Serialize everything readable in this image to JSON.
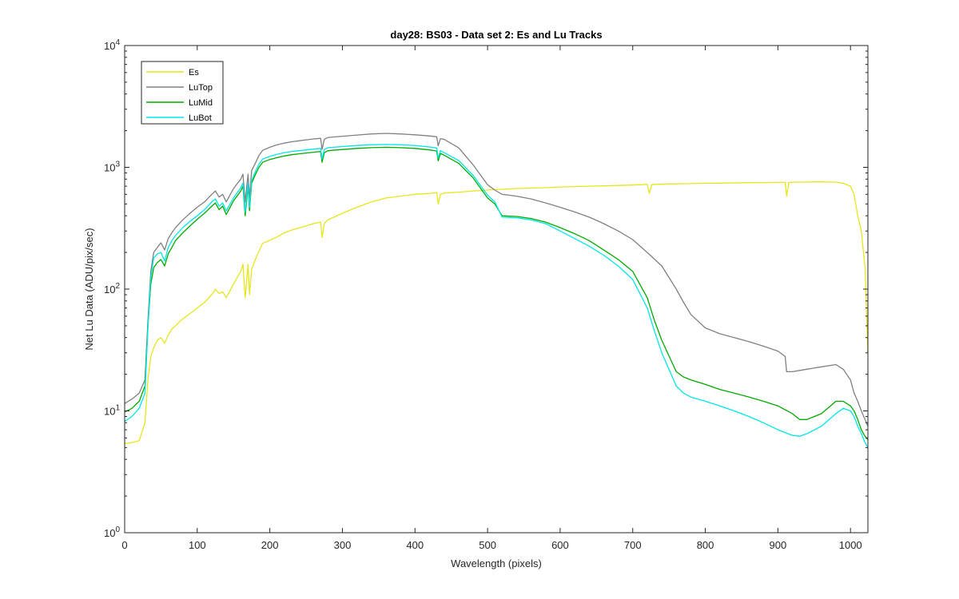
{
  "chart_data": {
    "type": "line",
    "title": "day28: BS03 - Data set 2: Es and Lu Tracks",
    "xlabel": "Wavelength (pixels)",
    "ylabel": "Net Lu Data (ADU/pix/sec)",
    "xlim": [
      0,
      1024
    ],
    "ylim": [
      1,
      10000
    ],
    "yscale": "log",
    "grid": false,
    "legend_position": "top-left",
    "x_ticks": [
      0,
      100,
      200,
      300,
      400,
      500,
      600,
      700,
      800,
      900,
      1000
    ],
    "x_tick_labels": [
      "0",
      "100",
      "200",
      "300",
      "400",
      "500",
      "600",
      "700",
      "800",
      "900",
      "1000"
    ],
    "y_ticks": [
      1,
      10,
      100,
      1000,
      10000
    ],
    "y_tick_labels": [
      {
        "base": "10",
        "exp": "0"
      },
      {
        "base": "10",
        "exp": "1"
      },
      {
        "base": "10",
        "exp": "2"
      },
      {
        "base": "10",
        "exp": "3"
      },
      {
        "base": "10",
        "exp": "4"
      }
    ],
    "series": [
      {
        "name": "Es",
        "color": "#e6e61a",
        "x": [
          0,
          10,
          20,
          28,
          32,
          36,
          40,
          45,
          50,
          55,
          60,
          65,
          70,
          80,
          90,
          100,
          110,
          120,
          125,
          130,
          135,
          140,
          150,
          160,
          163,
          166,
          170,
          172,
          175,
          180,
          185,
          190,
          200,
          210,
          220,
          230,
          240,
          250,
          260,
          270,
          272,
          275,
          280,
          300,
          320,
          340,
          360,
          380,
          400,
          420,
          430,
          432,
          435,
          440,
          460,
          480,
          500,
          520,
          540,
          560,
          580,
          600,
          620,
          640,
          660,
          680,
          700,
          710,
          720,
          723,
          726,
          730,
          750,
          780,
          800,
          820,
          840,
          860,
          880,
          900,
          910,
          912,
          915,
          920,
          940,
          960,
          980,
          990,
          1000,
          1005,
          1010,
          1015,
          1020,
          1024
        ],
        "y": [
          5.4,
          5.5,
          5.7,
          8,
          18,
          28,
          33,
          38,
          40,
          36,
          42,
          47,
          50,
          57,
          63,
          70,
          78,
          90,
          100,
          92,
          95,
          85,
          110,
          140,
          160,
          85,
          160,
          90,
          145,
          175,
          205,
          238,
          252,
          268,
          290,
          305,
          318,
          330,
          345,
          355,
          265,
          345,
          370,
          420,
          470,
          520,
          560,
          580,
          600,
          610,
          620,
          500,
          600,
          615,
          625,
          640,
          650,
          660,
          670,
          675,
          680,
          690,
          695,
          700,
          705,
          710,
          715,
          720,
          725,
          610,
          720,
          725,
          730,
          735,
          740,
          742,
          745,
          748,
          750,
          752,
          755,
          580,
          750,
          755,
          758,
          760,
          755,
          740,
          700,
          600,
          400,
          300,
          150,
          30
        ]
      },
      {
        "name": "LuTop",
        "color": "#808080",
        "x": [
          0,
          10,
          20,
          28,
          32,
          36,
          40,
          45,
          50,
          55,
          60,
          65,
          70,
          80,
          90,
          100,
          110,
          120,
          125,
          130,
          135,
          140,
          150,
          160,
          163,
          166,
          170,
          172,
          175,
          180,
          185,
          190,
          200,
          210,
          220,
          230,
          240,
          250,
          260,
          270,
          272,
          275,
          280,
          300,
          320,
          340,
          360,
          380,
          400,
          420,
          430,
          432,
          435,
          440,
          460,
          480,
          500,
          510,
          520,
          540,
          560,
          580,
          600,
          620,
          640,
          660,
          680,
          700,
          720,
          740,
          760,
          770,
          780,
          800,
          820,
          840,
          860,
          880,
          900,
          910,
          912,
          915,
          920,
          940,
          960,
          980,
          990,
          1000,
          1005,
          1010,
          1015,
          1020,
          1024
        ],
        "y": [
          11.5,
          12.5,
          14,
          18,
          55,
          140,
          200,
          220,
          240,
          210,
          260,
          290,
          320,
          370,
          420,
          470,
          520,
          600,
          640,
          570,
          600,
          520,
          670,
          800,
          880,
          520,
          880,
          560,
          940,
          1080,
          1250,
          1380,
          1460,
          1530,
          1580,
          1620,
          1650,
          1680,
          1710,
          1730,
          1400,
          1700,
          1760,
          1800,
          1840,
          1880,
          1900,
          1880,
          1850,
          1810,
          1780,
          1500,
          1720,
          1700,
          1450,
          1050,
          720,
          650,
          600,
          580,
          550,
          510,
          470,
          430,
          390,
          345,
          300,
          255,
          200,
          155,
          100,
          78,
          62,
          48,
          43,
          40,
          37,
          34,
          31,
          28,
          21,
          21,
          21,
          22,
          23,
          24,
          22,
          18,
          14,
          12,
          10,
          8.5,
          7.5
        ]
      },
      {
        "name": "LuMid",
        "color": "#00aa00",
        "x": [
          0,
          10,
          20,
          28,
          32,
          36,
          40,
          45,
          50,
          55,
          60,
          65,
          70,
          80,
          90,
          100,
          110,
          120,
          125,
          130,
          135,
          140,
          150,
          160,
          163,
          166,
          170,
          172,
          175,
          180,
          185,
          190,
          200,
          210,
          220,
          230,
          240,
          250,
          260,
          270,
          272,
          275,
          280,
          300,
          320,
          340,
          360,
          380,
          400,
          420,
          430,
          432,
          435,
          440,
          460,
          480,
          500,
          510,
          520,
          540,
          560,
          580,
          600,
          620,
          640,
          660,
          680,
          700,
          720,
          730,
          740,
          760,
          770,
          780,
          800,
          820,
          840,
          860,
          880,
          900,
          920,
          930,
          940,
          960,
          980,
          990,
          1000,
          1005,
          1010,
          1015,
          1020,
          1024
        ],
        "y": [
          9.8,
          10.5,
          12,
          16,
          50,
          110,
          150,
          165,
          175,
          155,
          195,
          220,
          250,
          290,
          330,
          375,
          420,
          480,
          510,
          450,
          480,
          410,
          530,
          640,
          700,
          400,
          700,
          440,
          740,
          870,
          1000,
          1100,
          1160,
          1200,
          1240,
          1270,
          1290,
          1310,
          1330,
          1350,
          1100,
          1320,
          1370,
          1400,
          1430,
          1450,
          1460,
          1450,
          1430,
          1390,
          1360,
          1130,
          1300,
          1260,
          1080,
          820,
          560,
          500,
          400,
          395,
          380,
          355,
          320,
          285,
          250,
          210,
          175,
          140,
          85,
          55,
          38,
          21,
          19,
          18,
          16.5,
          15,
          14,
          13,
          12,
          11,
          9.5,
          8.5,
          8.5,
          9.5,
          12,
          12,
          11,
          10,
          8.5,
          7,
          6.2,
          5.8
        ]
      },
      {
        "name": "LuBot",
        "color": "#00e6e6",
        "x": [
          0,
          10,
          20,
          28,
          32,
          36,
          40,
          45,
          50,
          55,
          60,
          65,
          70,
          80,
          90,
          100,
          110,
          120,
          125,
          130,
          135,
          140,
          150,
          160,
          163,
          166,
          170,
          172,
          175,
          180,
          185,
          190,
          200,
          210,
          220,
          230,
          240,
          250,
          260,
          270,
          272,
          275,
          280,
          300,
          320,
          340,
          360,
          380,
          400,
          420,
          430,
          432,
          435,
          440,
          460,
          480,
          500,
          510,
          520,
          540,
          560,
          580,
          600,
          620,
          640,
          660,
          680,
          700,
          720,
          730,
          740,
          760,
          770,
          780,
          800,
          820,
          840,
          860,
          880,
          900,
          920,
          930,
          940,
          960,
          980,
          990,
          1000,
          1005,
          1010,
          1015,
          1020,
          1024
        ],
        "y": [
          8.2,
          9,
          10.5,
          14,
          48,
          125,
          180,
          195,
          200,
          170,
          220,
          250,
          275,
          320,
          360,
          400,
          450,
          520,
          550,
          480,
          510,
          440,
          560,
          680,
          740,
          430,
          740,
          470,
          780,
          920,
          1060,
          1170,
          1230,
          1280,
          1320,
          1350,
          1370,
          1390,
          1410,
          1430,
          1170,
          1400,
          1450,
          1480,
          1510,
          1530,
          1540,
          1530,
          1510,
          1470,
          1440,
          1190,
          1370,
          1320,
          1140,
          860,
          590,
          520,
          390,
          385,
          370,
          345,
          300,
          260,
          225,
          190,
          155,
          120,
          70,
          45,
          30,
          16,
          14,
          13,
          12,
          11,
          10,
          9,
          8,
          7,
          6.3,
          6.2,
          6.5,
          7.5,
          9.5,
          10.5,
          10,
          9,
          7.5,
          6.5,
          5.5,
          5
        ]
      }
    ]
  }
}
